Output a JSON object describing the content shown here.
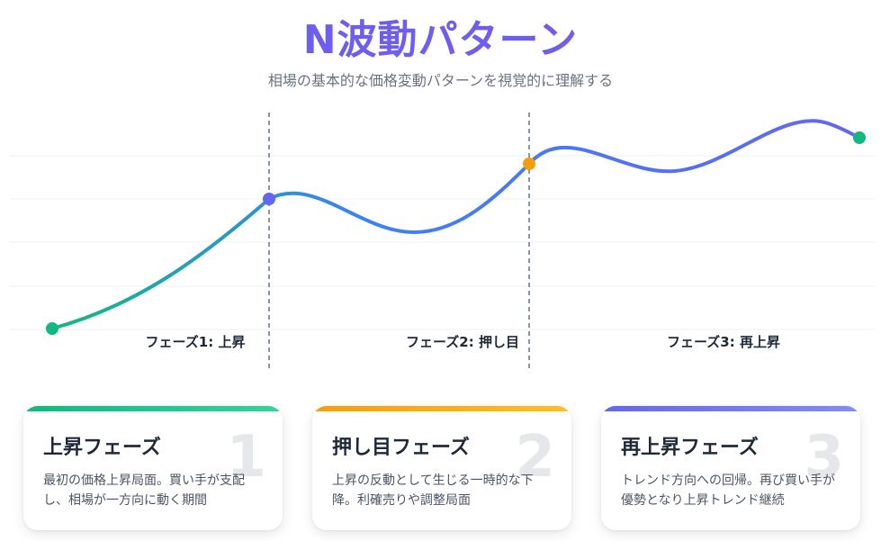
{
  "header": {
    "title": "N波動パターン",
    "subtitle": "相場の基本的な価格変動パターンを視覚的に理解する"
  },
  "colors": {
    "accent": "#6d5ef0",
    "green": "#10b981",
    "orange": "#f59e0b",
    "indigo": "#6366f1",
    "blue": "#3b82f6"
  },
  "phase_labels": [
    "フェーズ1: 上昇",
    "フェーズ2: 押し目",
    "フェーズ3: 再上昇"
  ],
  "cards": [
    {
      "number": "1",
      "title": "上昇フェーズ",
      "desc": "最初の価格上昇局面。買い手が支配し、相場が一方向に動く期間"
    },
    {
      "number": "2",
      "title": "押し目フェーズ",
      "desc": "上昇の反動として生じる一時的な下降。利確売りや調整局面"
    },
    {
      "number": "3",
      "title": "再上昇フェーズ",
      "desc": "トレンド方向への回帰。再び買い手が優勢となり上昇トレンド継続"
    }
  ]
}
